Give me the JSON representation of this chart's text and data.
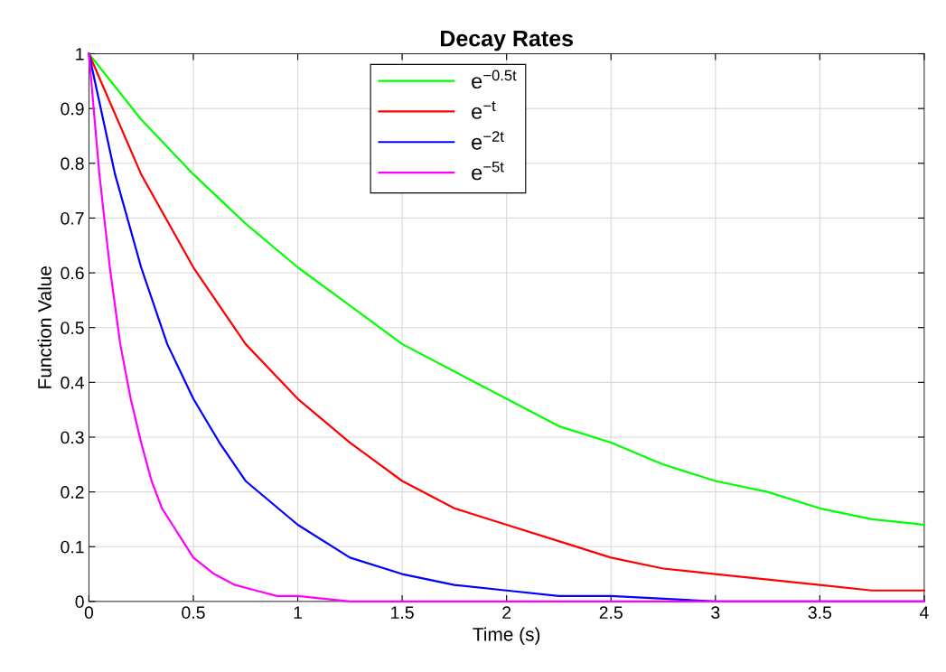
{
  "chart_data": {
    "type": "line",
    "title": "Decay Rates",
    "xlabel": "Time (s)",
    "ylabel": "Function Value",
    "xlim": [
      0,
      4
    ],
    "ylim": [
      0,
      1
    ],
    "xticks": [
      0,
      0.5,
      1,
      1.5,
      2,
      2.5,
      3,
      3.5,
      4
    ],
    "yticks": [
      0,
      0.1,
      0.2,
      0.3,
      0.4,
      0.5,
      0.6,
      0.7,
      0.8,
      0.9,
      1
    ],
    "grid": true,
    "legend": "top",
    "marker": "none",
    "line_style": "solid",
    "series": [
      {
        "name": "e$^{−0.5t}$",
        "color": "#00ff00",
        "x": [
          0,
          0.25,
          0.5,
          0.75,
          1,
          1.25,
          1.5,
          1.75,
          2,
          2.25,
          2.5,
          2.75,
          3,
          3.25,
          3.5,
          3.75,
          4
        ],
        "values": [
          1,
          0.88,
          0.78,
          0.69,
          0.61,
          0.54,
          0.47,
          0.42,
          0.37,
          0.32,
          0.29,
          0.25,
          0.22,
          0.2,
          0.17,
          0.15,
          0.14
        ]
      },
      {
        "name": "e$^{−t}$",
        "color": "#ff0000",
        "x": [
          0,
          0.25,
          0.5,
          0.75,
          1,
          1.25,
          1.5,
          1.75,
          2,
          2.25,
          2.5,
          2.75,
          3,
          3.25,
          3.5,
          3.75,
          4
        ],
        "values": [
          1,
          0.78,
          0.61,
          0.47,
          0.37,
          0.29,
          0.22,
          0.17,
          0.14,
          0.11,
          0.08,
          0.06,
          0.05,
          0.04,
          0.03,
          0.02,
          0.02
        ]
      },
      {
        "name": "e$^{−2t}$",
        "color": "#0000ff",
        "x": [
          0,
          0.125,
          0.25,
          0.375,
          0.5,
          0.625,
          0.75,
          1,
          1.25,
          1.5,
          1.75,
          2,
          2.25,
          2.5,
          3,
          3.5,
          4
        ],
        "values": [
          1,
          0.78,
          0.61,
          0.47,
          0.37,
          0.29,
          0.22,
          0.14,
          0.08,
          0.05,
          0.03,
          0.02,
          0.01,
          0.01,
          0,
          0,
          0
        ]
      },
      {
        "name": "e$^{−5t}$",
        "color": "#ff00ff",
        "x": [
          0,
          0.05,
          0.1,
          0.15,
          0.2,
          0.25,
          0.3,
          0.35,
          0.4,
          0.45,
          0.5,
          0.6,
          0.7,
          0.8,
          0.9,
          1,
          1.25,
          1.5,
          2,
          3,
          4
        ],
        "values": [
          1,
          0.78,
          0.61,
          0.47,
          0.37,
          0.29,
          0.22,
          0.17,
          0.14,
          0.11,
          0.08,
          0.05,
          0.03,
          0.02,
          0.01,
          0.01,
          0,
          0,
          0,
          0,
          0
        ]
      }
    ]
  }
}
